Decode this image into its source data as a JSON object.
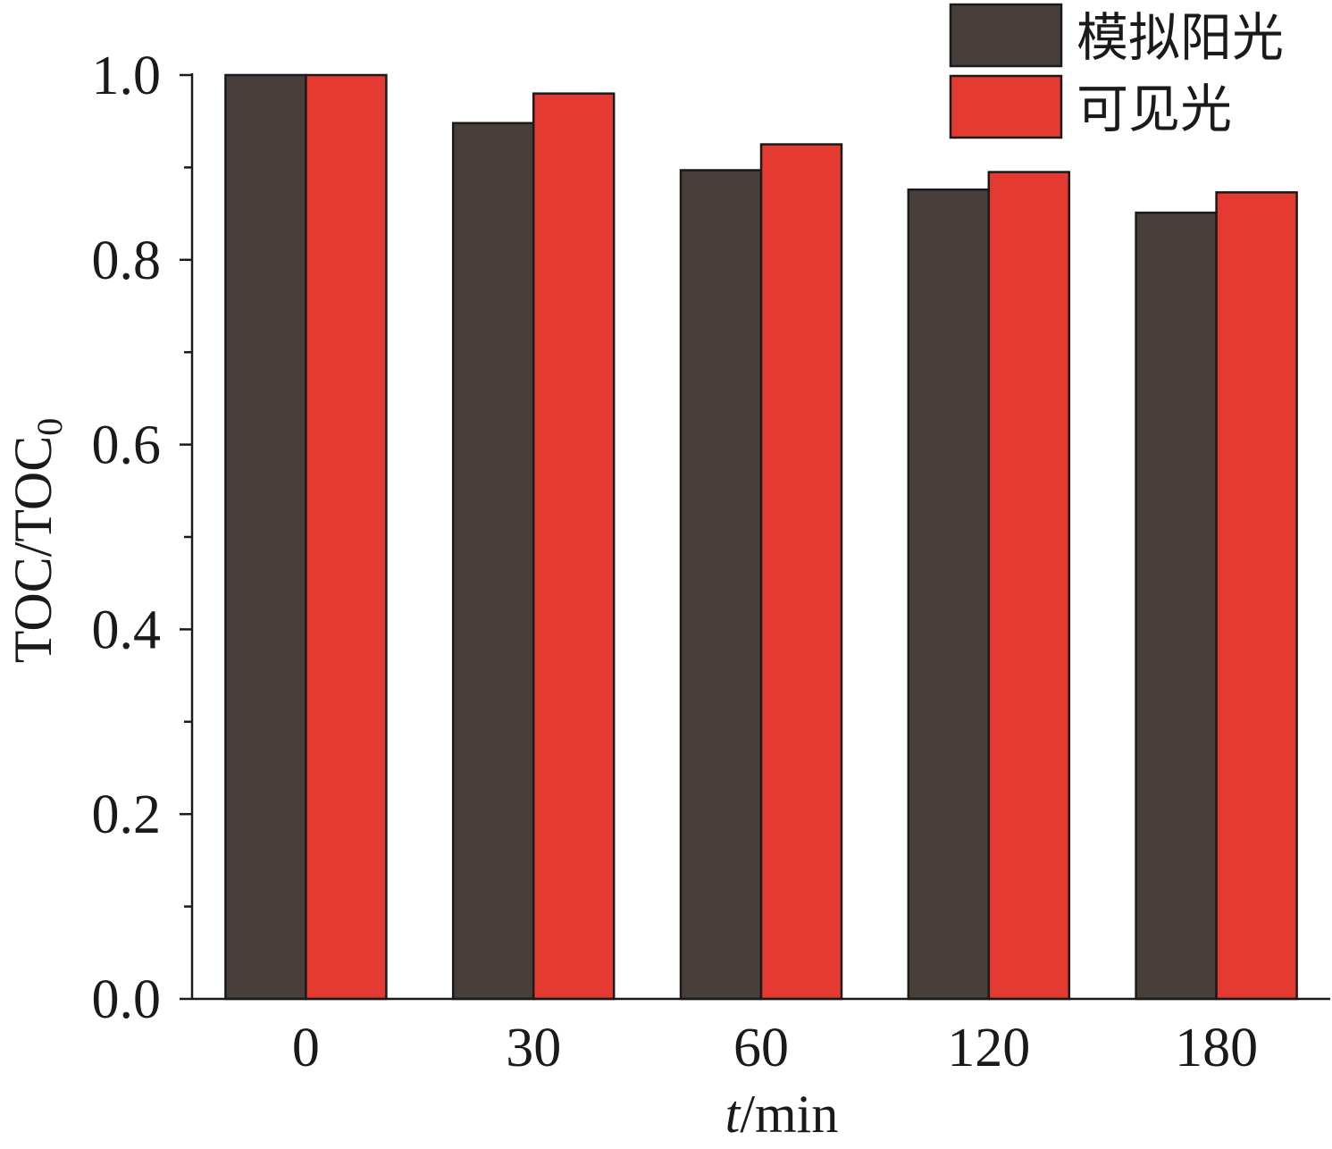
{
  "chart_data": {
    "type": "bar",
    "categories": [
      "0",
      "30",
      "60",
      "120",
      "180"
    ],
    "series": [
      {
        "name": "模拟阳光",
        "color": "#483f3b",
        "values": [
          1.0,
          0.948,
          0.897,
          0.876,
          0.851
        ]
      },
      {
        "name": "可见光",
        "color": "#e53a31",
        "values": [
          1.0,
          0.98,
          0.925,
          0.895,
          0.873
        ]
      }
    ],
    "xlabel_italic": "t",
    "xlabel_rest": "/min",
    "ylabel_main": "TOC/TOC",
    "ylabel_sub": "0",
    "ylim": [
      0,
      1.0
    ],
    "yticks": [
      "0.0",
      "0.2",
      "0.4",
      "0.6",
      "0.8",
      "1.0"
    ],
    "grid": false,
    "legend_position": "top-right"
  }
}
